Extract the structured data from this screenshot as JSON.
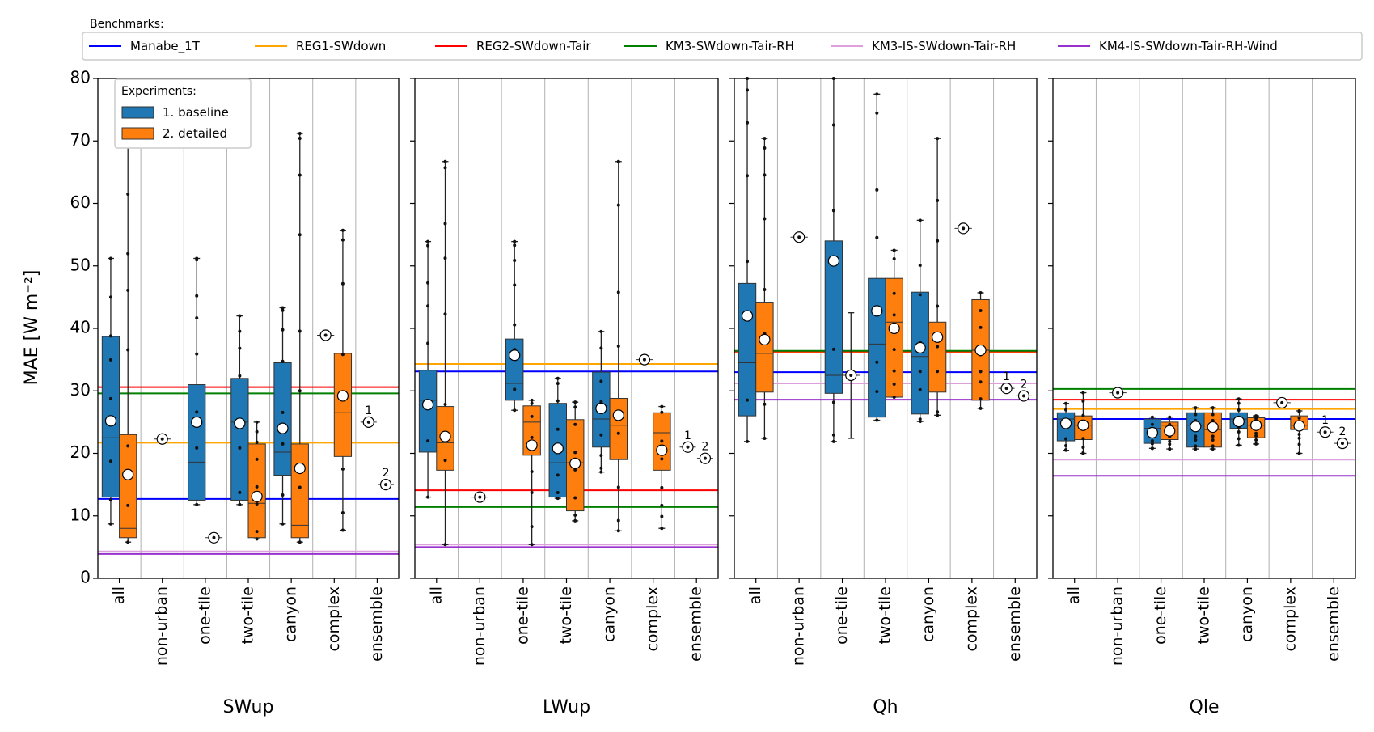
{
  "legend_benchmarks": {
    "title": "Benchmarks:",
    "items": [
      {
        "label": "Manabe_1T",
        "color": "#0000ff"
      },
      {
        "label": "REG1-SWdown",
        "color": "#ffa500"
      },
      {
        "label": "REG2-SWdown-Tair",
        "color": "#ff0000"
      },
      {
        "label": "KM3-SWdown-Tair-RH",
        "color": "#008000"
      },
      {
        "label": "KM3-IS-SWdown-Tair-RH",
        "color": "#dda0dd"
      },
      {
        "label": "KM4-IS-SWdown-Tair-RH-Wind",
        "color": "#9932cc"
      }
    ]
  },
  "legend_experiments": {
    "title": "Experiments:",
    "items": [
      {
        "label": "1. baseline",
        "color": "#1f77b4"
      },
      {
        "label": "2. detailed",
        "color": "#ff7f0e"
      }
    ]
  },
  "chart_data": {
    "type": "box",
    "ylabel": "MAE [W m⁻²]",
    "ylim": [
      0,
      80
    ],
    "yticks": [
      0,
      10,
      20,
      30,
      40,
      50,
      60,
      70,
      80
    ],
    "categories": [
      "all",
      "non-urban",
      "one-tile",
      "two-tile",
      "canyon",
      "complex",
      "ensemble"
    ],
    "ensemble_labels": [
      "1",
      "2"
    ],
    "panels": [
      {
        "name": "SWup",
        "benchmarks": [
          12.7,
          21.7,
          30.6,
          29.6,
          4.3,
          3.9
        ],
        "boxes": [
          {
            "cat": 0,
            "exp": 0,
            "q1": 13,
            "med": 22.5,
            "q3": 38.7,
            "wlo": 8.7,
            "whi": 51.2,
            "mean": 25.2
          },
          {
            "cat": 0,
            "exp": 1,
            "q1": 6.5,
            "med": 8.0,
            "q3": 23.0,
            "wlo": 5.8,
            "whi": 71.0,
            "mean": 16.6
          },
          {
            "cat": 2,
            "exp": 0,
            "q1": 12.5,
            "med": 18.6,
            "q3": 31.0,
            "wlo": 11.8,
            "whi": 51.2,
            "mean": 25.0
          },
          {
            "cat": 3,
            "exp": 0,
            "q1": 12.5,
            "med": 25.0,
            "q3": 32.0,
            "wlo": 11.8,
            "whi": 42.0,
            "mean": 24.8
          },
          {
            "cat": 3,
            "exp": 1,
            "q1": 6.5,
            "med": 12.0,
            "q3": 21.5,
            "wlo": 6.3,
            "whi": 25.0,
            "mean": 13.1
          },
          {
            "cat": 4,
            "exp": 0,
            "q1": 16.5,
            "med": 20.2,
            "q3": 34.5,
            "wlo": 8.7,
            "whi": 43.3,
            "mean": 24.0
          },
          {
            "cat": 4,
            "exp": 1,
            "q1": 6.5,
            "med": 8.5,
            "q3": 21.5,
            "wlo": 5.8,
            "whi": 71.2,
            "mean": 17.6
          },
          {
            "cat": 5,
            "exp": 1,
            "q1": 19.5,
            "med": 26.5,
            "q3": 36.0,
            "wlo": 7.7,
            "whi": 55.7,
            "mean": 29.2
          }
        ],
        "singles": [
          {
            "cat": 1,
            "exp": 0.5,
            "value": 22.3
          },
          {
            "cat": 2,
            "exp": 1,
            "value": 6.5
          },
          {
            "cat": 5,
            "exp": 0,
            "value": 38.9
          }
        ],
        "ensemble": [
          25.0,
          15.0
        ]
      },
      {
        "name": "LWup",
        "benchmarks": [
          33.1,
          34.3,
          14.1,
          11.4,
          5.4,
          5.0
        ],
        "boxes": [
          {
            "cat": 0,
            "exp": 0,
            "q1": 20.2,
            "med": 28.5,
            "q3": 33.3,
            "wlo": 13.0,
            "whi": 53.9,
            "mean": 27.8
          },
          {
            "cat": 0,
            "exp": 1,
            "q1": 17.3,
            "med": 21.7,
            "q3": 27.5,
            "wlo": 5.4,
            "whi": 66.7,
            "mean": 22.7
          },
          {
            "cat": 2,
            "exp": 0,
            "q1": 28.5,
            "med": 31.2,
            "q3": 38.3,
            "wlo": 26.9,
            "whi": 53.9,
            "mean": 35.7
          },
          {
            "cat": 2,
            "exp": 1,
            "q1": 19.7,
            "med": 25.0,
            "q3": 27.6,
            "wlo": 5.4,
            "whi": 28.5,
            "mean": 21.3
          },
          {
            "cat": 3,
            "exp": 0,
            "q1": 13.0,
            "med": 18.5,
            "q3": 28.0,
            "wlo": 12.8,
            "whi": 32.0,
            "mean": 20.8
          },
          {
            "cat": 3,
            "exp": 1,
            "q1": 10.8,
            "med": 18.5,
            "q3": 25.4,
            "wlo": 9.2,
            "whi": 28.2,
            "mean": 18.4
          },
          {
            "cat": 4,
            "exp": 0,
            "q1": 21.0,
            "med": 25.5,
            "q3": 33.0,
            "wlo": 17.0,
            "whi": 39.5,
            "mean": 27.2
          },
          {
            "cat": 4,
            "exp": 1,
            "q1": 19.0,
            "med": 24.5,
            "q3": 28.8,
            "wlo": 7.6,
            "whi": 66.7,
            "mean": 26.1
          },
          {
            "cat": 5,
            "exp": 1,
            "q1": 17.3,
            "med": 23.3,
            "q3": 26.5,
            "wlo": 8.0,
            "whi": 27.5,
            "mean": 20.5
          }
        ],
        "singles": [
          {
            "cat": 1,
            "exp": 0.5,
            "value": 13.0
          },
          {
            "cat": 5,
            "exp": 0,
            "value": 35.0
          }
        ],
        "ensemble": [
          21.0,
          19.2
        ]
      },
      {
        "name": "Qh",
        "benchmarks": [
          33.0,
          36.2,
          36.3,
          36.4,
          31.2,
          28.6
        ],
        "boxes": [
          {
            "cat": 0,
            "exp": 0,
            "q1": 26.0,
            "med": 34.5,
            "q3": 47.2,
            "wlo": 21.9,
            "whi": 80.0,
            "mean": 42.0
          },
          {
            "cat": 0,
            "exp": 1,
            "q1": 29.8,
            "med": 36.0,
            "q3": 44.2,
            "wlo": 22.4,
            "whi": 70.4,
            "mean": 38.2
          },
          {
            "cat": 2,
            "exp": 0,
            "q1": 29.6,
            "med": 32.5,
            "q3": 54.0,
            "wlo": 21.9,
            "whi": 80.0,
            "mean": 50.8
          },
          {
            "cat": 3,
            "exp": 0,
            "q1": 25.8,
            "med": 37.5,
            "q3": 48.0,
            "wlo": 25.3,
            "whi": 77.5,
            "mean": 42.8
          },
          {
            "cat": 3,
            "exp": 1,
            "q1": 29.0,
            "med": 41.0,
            "q3": 48.0,
            "wlo": 29.0,
            "whi": 52.5,
            "mean": 40.0
          },
          {
            "cat": 4,
            "exp": 0,
            "q1": 26.3,
            "med": 35.5,
            "q3": 45.8,
            "wlo": 25.1,
            "whi": 57.3,
            "mean": 36.9
          },
          {
            "cat": 4,
            "exp": 1,
            "q1": 29.8,
            "med": 38.0,
            "q3": 41.0,
            "wlo": 26.1,
            "whi": 70.4,
            "mean": 38.6
          },
          {
            "cat": 5,
            "exp": 1,
            "q1": 28.5,
            "med": 36.5,
            "q3": 44.6,
            "wlo": 27.2,
            "whi": 45.7,
            "mean": 36.5
          }
        ],
        "singles": [
          {
            "cat": 1,
            "exp": 0.5,
            "value": 54.6
          },
          {
            "cat": 2,
            "exp": 1,
            "value": 32.5,
            "wlo": 22.4,
            "whi": 42.5
          },
          {
            "cat": 5,
            "exp": 0,
            "value": 56.0
          }
        ],
        "ensemble": [
          30.4,
          29.2
        ]
      },
      {
        "name": "Qle",
        "benchmarks": [
          25.5,
          27.1,
          28.6,
          30.3,
          19.0,
          16.4
        ],
        "boxes": [
          {
            "cat": 0,
            "exp": 0,
            "q1": 22.0,
            "med": 25.5,
            "q3": 26.5,
            "wlo": 20.5,
            "whi": 28.0,
            "mean": 24.8
          },
          {
            "cat": 0,
            "exp": 1,
            "q1": 22.2,
            "med": 24.5,
            "q3": 26.0,
            "wlo": 20.0,
            "whi": 29.7,
            "mean": 24.5
          },
          {
            "cat": 2,
            "exp": 0,
            "q1": 21.6,
            "med": 24.0,
            "q3": 25.5,
            "wlo": 20.8,
            "whi": 25.8,
            "mean": 23.3
          },
          {
            "cat": 2,
            "exp": 1,
            "q1": 22.2,
            "med": 24.5,
            "q3": 25.0,
            "wlo": 20.7,
            "whi": 25.8,
            "mean": 23.6
          },
          {
            "cat": 3,
            "exp": 0,
            "q1": 21.0,
            "med": 24.5,
            "q3": 26.5,
            "wlo": 20.7,
            "whi": 27.3,
            "mean": 24.3
          },
          {
            "cat": 3,
            "exp": 1,
            "q1": 21.0,
            "med": 23.8,
            "q3": 26.5,
            "wlo": 20.7,
            "whi": 27.3,
            "mean": 24.2
          },
          {
            "cat": 4,
            "exp": 0,
            "q1": 24.0,
            "med": 25.5,
            "q3": 26.5,
            "wlo": 21.3,
            "whi": 28.7,
            "mean": 25.1
          },
          {
            "cat": 4,
            "exp": 1,
            "q1": 22.5,
            "med": 24.5,
            "q3": 25.7,
            "wlo": 21.5,
            "whi": 26.0,
            "mean": 24.5
          },
          {
            "cat": 5,
            "exp": 1,
            "q1": 23.8,
            "med": 24.5,
            "q3": 26.0,
            "wlo": 20.0,
            "whi": 26.8,
            "mean": 24.4
          }
        ],
        "singles": [
          {
            "cat": 1,
            "exp": 0.5,
            "value": 29.7
          },
          {
            "cat": 5,
            "exp": 0,
            "value": 28.1
          }
        ],
        "ensemble": [
          23.4,
          21.6
        ]
      }
    ]
  }
}
